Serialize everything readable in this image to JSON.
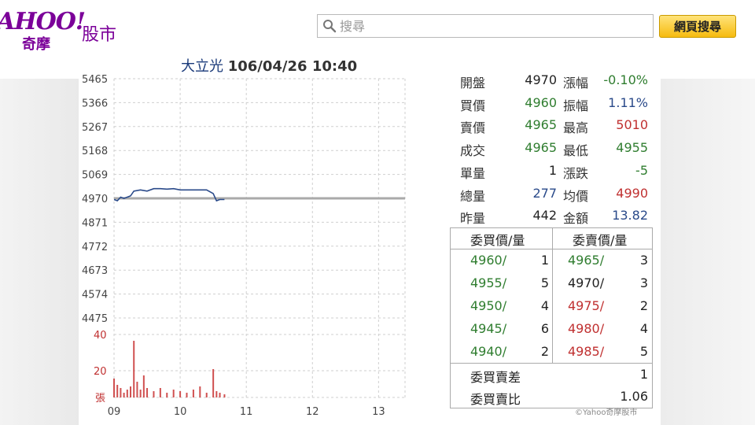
{
  "header": {
    "logo_text": "AHOO!",
    "logo_cn": "奇摩",
    "section": "股市",
    "search_placeholder": "搜尋",
    "search_button": "網頁搜尋"
  },
  "chart_title": {
    "name": "大立光",
    "datetime": "106/04/26 10:40"
  },
  "chart_data": {
    "type": "line",
    "title": "大立光 106/04/26 10:40",
    "price_ticks": [
      "5465",
      "5366",
      "5267",
      "5168",
      "5069",
      "4970",
      "4871",
      "4772",
      "4673",
      "4574",
      "4475"
    ],
    "ylim": [
      4475,
      5465
    ],
    "reference_price": 4970,
    "x_ticks": [
      "09",
      "10",
      "11",
      "12",
      "13"
    ],
    "series": [
      {
        "times": [
          9.0,
          9.05,
          9.1,
          9.15,
          9.2,
          9.25,
          9.3,
          9.4,
          9.5,
          9.6,
          9.7,
          9.8,
          9.9,
          10.0,
          10.1,
          10.2,
          10.3,
          10.4,
          10.5,
          10.55,
          10.6,
          10.67
        ],
        "values": [
          4965,
          4960,
          4975,
          4970,
          4975,
          4980,
          5000,
          5005,
          5000,
          5010,
          5010,
          5008,
          5010,
          5005,
          5005,
          5005,
          5005,
          5005,
          4990,
          4960,
          4965,
          4965
        ]
      }
    ],
    "volume": {
      "ticks": [
        "40",
        "20",
        "張"
      ],
      "ymax": 40,
      "times": [
        9.0,
        9.05,
        9.1,
        9.15,
        9.2,
        9.25,
        9.3,
        9.35,
        9.4,
        9.45,
        9.5,
        9.6,
        9.7,
        9.8,
        9.9,
        10.0,
        10.1,
        10.2,
        10.3,
        10.4,
        10.5,
        10.55,
        10.6,
        10.67
      ],
      "values": [
        12,
        8,
        6,
        3,
        5,
        7,
        36,
        10,
        5,
        14,
        6,
        4,
        6,
        3,
        5,
        4,
        3,
        5,
        7,
        3,
        18,
        4,
        3,
        2
      ]
    }
  },
  "quote": {
    "left": [
      {
        "label": "開盤",
        "value": "4970",
        "color": "black"
      },
      {
        "label": "買價",
        "value": "4960",
        "color": "green"
      },
      {
        "label": "賣價",
        "value": "4965",
        "color": "green"
      },
      {
        "label": "成交",
        "value": "4965",
        "color": "green"
      },
      {
        "label": "單量",
        "value": "1",
        "color": "black"
      },
      {
        "label": "總量",
        "value": "277",
        "color": "blue"
      },
      {
        "label": "昨量",
        "value": "442",
        "color": "black"
      }
    ],
    "right": [
      {
        "label": "漲幅",
        "value": "-0.10%",
        "color": "green"
      },
      {
        "label": "振幅",
        "value": "1.11%",
        "color": "blue"
      },
      {
        "label": "最高",
        "value": "5010",
        "color": "red"
      },
      {
        "label": "最低",
        "value": "4955",
        "color": "green"
      },
      {
        "label": "漲跌",
        "value": "-5",
        "color": "green"
      },
      {
        "label": "均價",
        "value": "4990",
        "color": "red"
      },
      {
        "label": "金額",
        "value": "13.82",
        "color": "blue"
      }
    ]
  },
  "order_book": {
    "bid_header": "委買價/量",
    "ask_header": "委賣價/量",
    "rows": [
      {
        "bid": "4960/",
        "bid_qty": "1",
        "ask": "4965/",
        "ask_qty": "3",
        "bid_color": "green",
        "ask_color": "green"
      },
      {
        "bid": "4955/",
        "bid_qty": "5",
        "ask": "4970/",
        "ask_qty": "3",
        "bid_color": "green",
        "ask_color": "black"
      },
      {
        "bid": "4950/",
        "bid_qty": "4",
        "ask": "4975/",
        "ask_qty": "2",
        "bid_color": "green",
        "ask_color": "red"
      },
      {
        "bid": "4945/",
        "bid_qty": "6",
        "ask": "4980/",
        "ask_qty": "4",
        "bid_color": "green",
        "ask_color": "red"
      },
      {
        "bid": "4940/",
        "bid_qty": "2",
        "ask": "4985/",
        "ask_qty": "5",
        "bid_color": "green",
        "ask_color": "red"
      }
    ],
    "diff_label": "委買賣差",
    "diff_value": "1",
    "ratio_label": "委買賣比",
    "ratio_value": "1.06"
  },
  "copyright": "©Yahoo奇摩股市",
  "colors": {
    "brand": "#7b0099",
    "up": "#c03030",
    "down": "#2f7d2f",
    "line": "#2a4a8a",
    "volume": "#d05050"
  }
}
